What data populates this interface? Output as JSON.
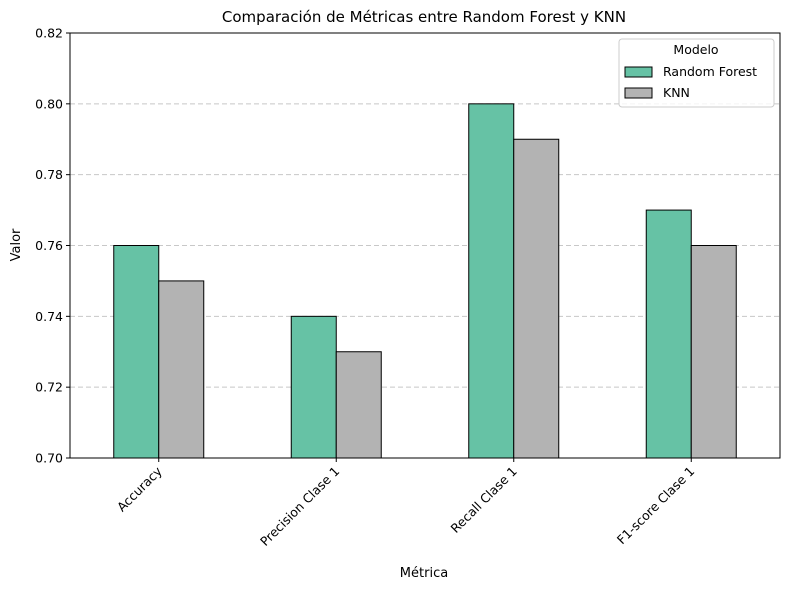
{
  "chart_data": {
    "type": "bar",
    "title": "Comparación de Métricas entre Random Forest y KNN",
    "xlabel": "Métrica",
    "ylabel": "Valor",
    "categories": [
      "Accuracy",
      "Precision Clase 1",
      "Recall Clase 1",
      "F1-score Clase 1"
    ],
    "series": [
      {
        "name": "Random Forest",
        "color": "#66c2a5",
        "values": [
          0.76,
          0.74,
          0.8,
          0.77
        ]
      },
      {
        "name": "KNN",
        "color": "#b3b3b3",
        "values": [
          0.75,
          0.73,
          0.79,
          0.76
        ]
      }
    ],
    "ylim": [
      0.7,
      0.82
    ],
    "yticks": [
      "0.70",
      "0.72",
      "0.74",
      "0.76",
      "0.78",
      "0.80",
      "0.82"
    ],
    "grid": "y-dashed",
    "legend": {
      "title": "Modelo",
      "position": "top-right"
    }
  }
}
